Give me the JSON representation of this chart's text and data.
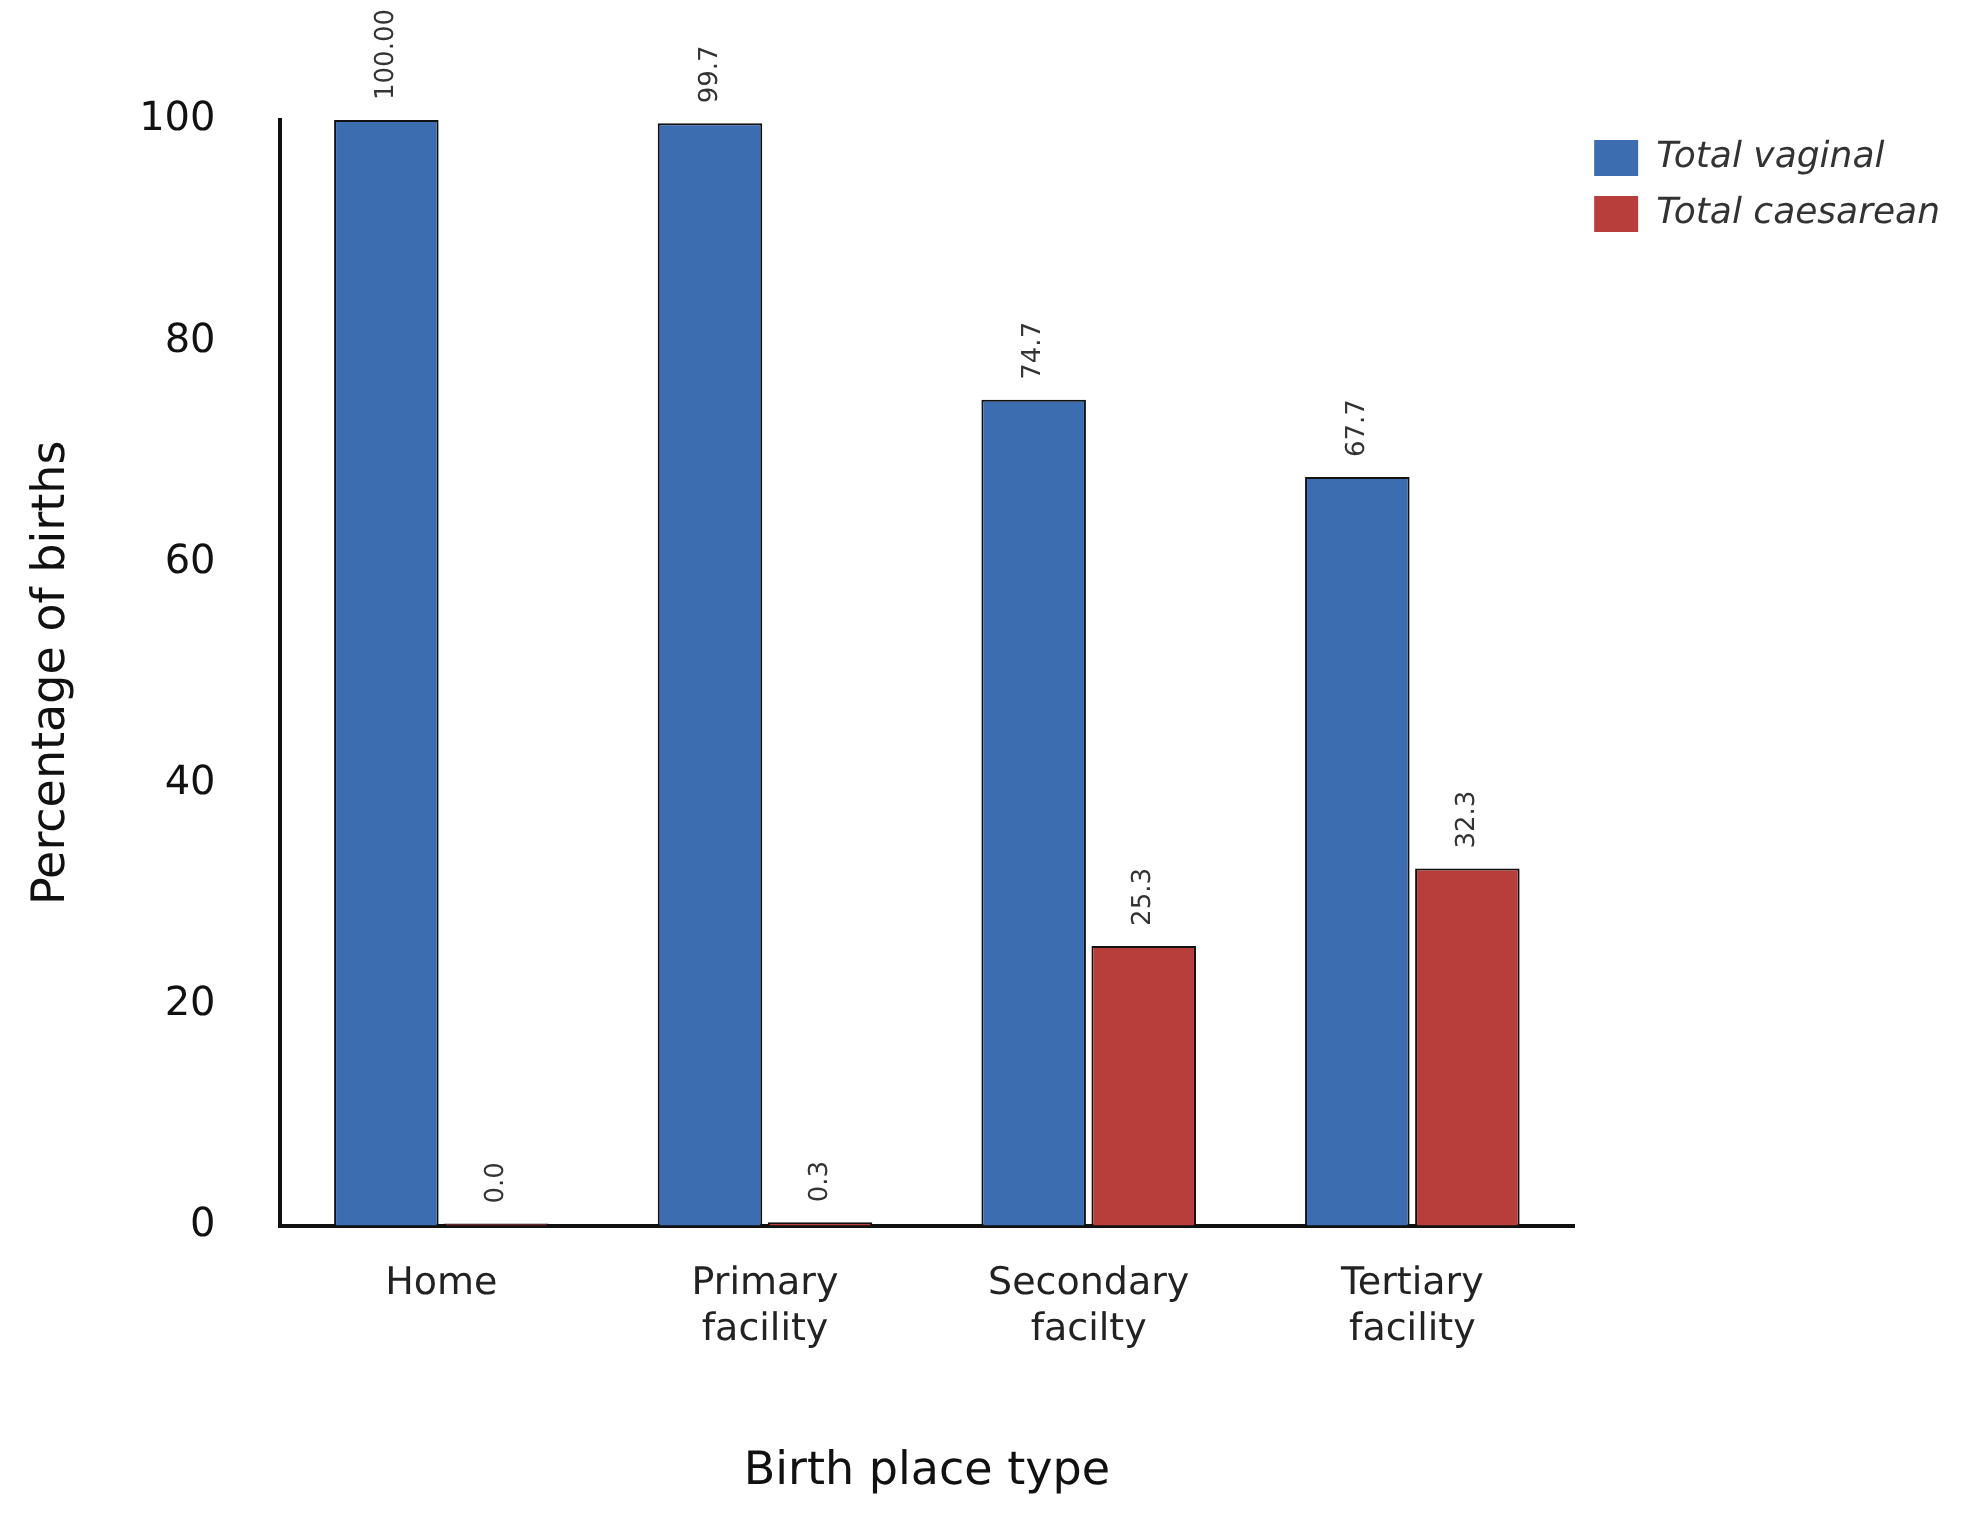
{
  "chart_data": {
    "type": "bar",
    "xlabel": "Birth place type",
    "ylabel": "Percentage of births",
    "categories": [
      "Home",
      "Primary facility",
      "Secondary facilty",
      "Tertiary facility"
    ],
    "series": [
      {
        "name": "Total vaginal",
        "color": "#3d6db1",
        "values": [
          100,
          99.7,
          74.7,
          67.7
        ],
        "value_labels": [
          "100.00",
          "99.7",
          "74.7",
          "67.7"
        ]
      },
      {
        "name": "Total caesarean",
        "color": "#b73e3b",
        "values": [
          0,
          0.3,
          25.3,
          32.3
        ],
        "value_labels": [
          "0.0",
          "0.3",
          "25.3",
          "32.3"
        ]
      }
    ],
    "ylim": [
      0,
      100
    ],
    "yticks": [
      0,
      20,
      40,
      60,
      80,
      100
    ],
    "grid": false,
    "legend": "top right"
  }
}
